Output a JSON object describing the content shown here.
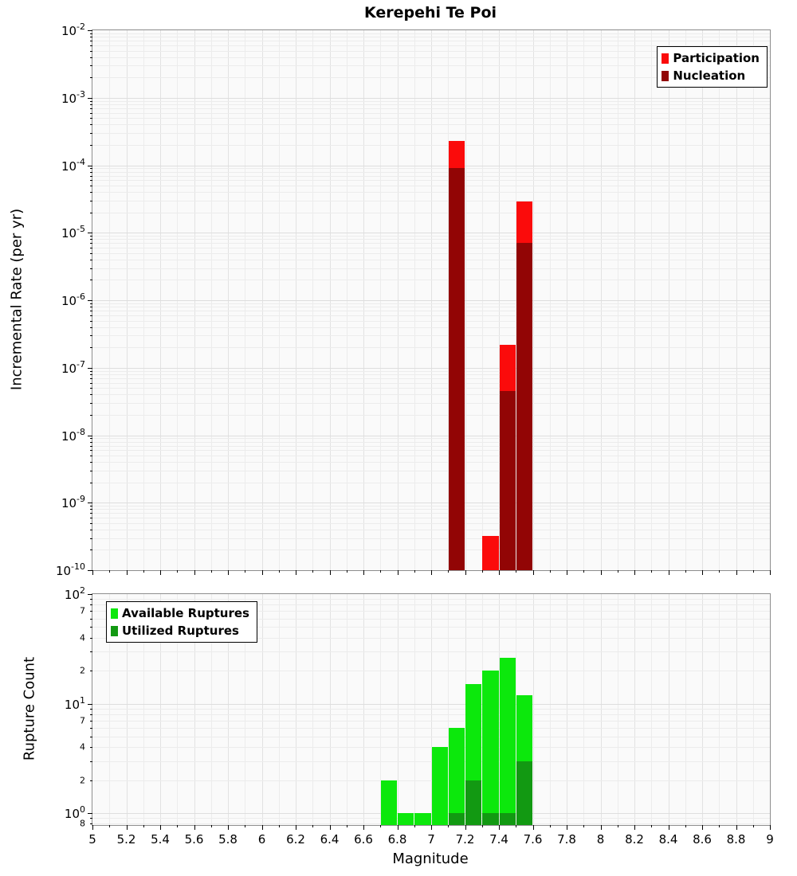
{
  "title": "Kerepehi Te Poi",
  "xlabel": "Magnitude",
  "chart_data": [
    {
      "type": "bar",
      "title": "Kerepehi Te Poi",
      "xlabel": "Magnitude",
      "ylabel": "Incremental Rate (per yr)",
      "y_scale": "log",
      "x_range": [
        5,
        9
      ],
      "y_range": [
        1e-10,
        0.01
      ],
      "bin_width": 0.1,
      "x_tick_step": 0.2,
      "grid": true,
      "legend_position": "top-right",
      "x_tick_labels": [
        "5",
        "5.2",
        "5.4",
        "5.6",
        "5.8",
        "6",
        "6.2",
        "6.4",
        "6.6",
        "6.8",
        "7",
        "7.2",
        "7.4",
        "7.6",
        "7.8",
        "8",
        "8.2",
        "8.4",
        "8.6",
        "8.8",
        "9"
      ],
      "y_tick_labels": [
        "10^-2",
        "10^-3",
        "10^-4",
        "10^-5",
        "10^-6",
        "10^-7",
        "10^-8",
        "10^-9",
        "10^-10"
      ],
      "series": [
        {
          "name": "Participation",
          "color": "#fb0b0b",
          "bins": [
            {
              "x": 7.15,
              "value": 0.00023
            },
            {
              "x": 7.35,
              "value": 3.2e-10
            },
            {
              "x": 7.45,
              "value": 2.2e-07
            },
            {
              "x": 7.55,
              "value": 2.9e-05
            }
          ]
        },
        {
          "name": "Nucleation",
          "color": "#920505",
          "bins": [
            {
              "x": 7.15,
              "value": 9e-05
            },
            {
              "x": 7.45,
              "value": 4.5e-08
            },
            {
              "x": 7.55,
              "value": 7e-06
            }
          ]
        }
      ]
    },
    {
      "type": "bar",
      "title": "",
      "xlabel": "Magnitude",
      "ylabel": "Rupture Count",
      "y_scale": "log",
      "x_range": [
        5,
        9
      ],
      "y_range": [
        0.78,
        100
      ],
      "bin_width": 0.1,
      "x_tick_step": 0.2,
      "grid": true,
      "legend_position": "top-left",
      "x_tick_labels": [
        "5",
        "5.2",
        "5.4",
        "5.6",
        "5.8",
        "6",
        "6.2",
        "6.4",
        "6.6",
        "6.8",
        "7",
        "7.2",
        "7.4",
        "7.6",
        "7.8",
        "8",
        "8.2",
        "8.4",
        "8.6",
        "8.8",
        "9"
      ],
      "y_tick_labels": [
        "10^2",
        "7",
        "4",
        "2",
        "10^1",
        "7",
        "4",
        "2",
        "10^0",
        "8"
      ],
      "series": [
        {
          "name": "Available Ruptures",
          "color": "#0ce80c",
          "bins": [
            {
              "x": 6.75,
              "value": 2
            },
            {
              "x": 6.85,
              "value": 1
            },
            {
              "x": 6.95,
              "value": 1
            },
            {
              "x": 7.05,
              "value": 4
            },
            {
              "x": 7.15,
              "value": 6
            },
            {
              "x": 7.25,
              "value": 15
            },
            {
              "x": 7.35,
              "value": 20
            },
            {
              "x": 7.45,
              "value": 26
            },
            {
              "x": 7.55,
              "value": 12
            }
          ]
        },
        {
          "name": "Utilized Ruptures",
          "color": "#129912",
          "bins": [
            {
              "x": 7.15,
              "value": 1
            },
            {
              "x": 7.25,
              "value": 2
            },
            {
              "x": 7.35,
              "value": 1
            },
            {
              "x": 7.45,
              "value": 1
            },
            {
              "x": 7.55,
              "value": 3
            }
          ]
        }
      ]
    }
  ]
}
